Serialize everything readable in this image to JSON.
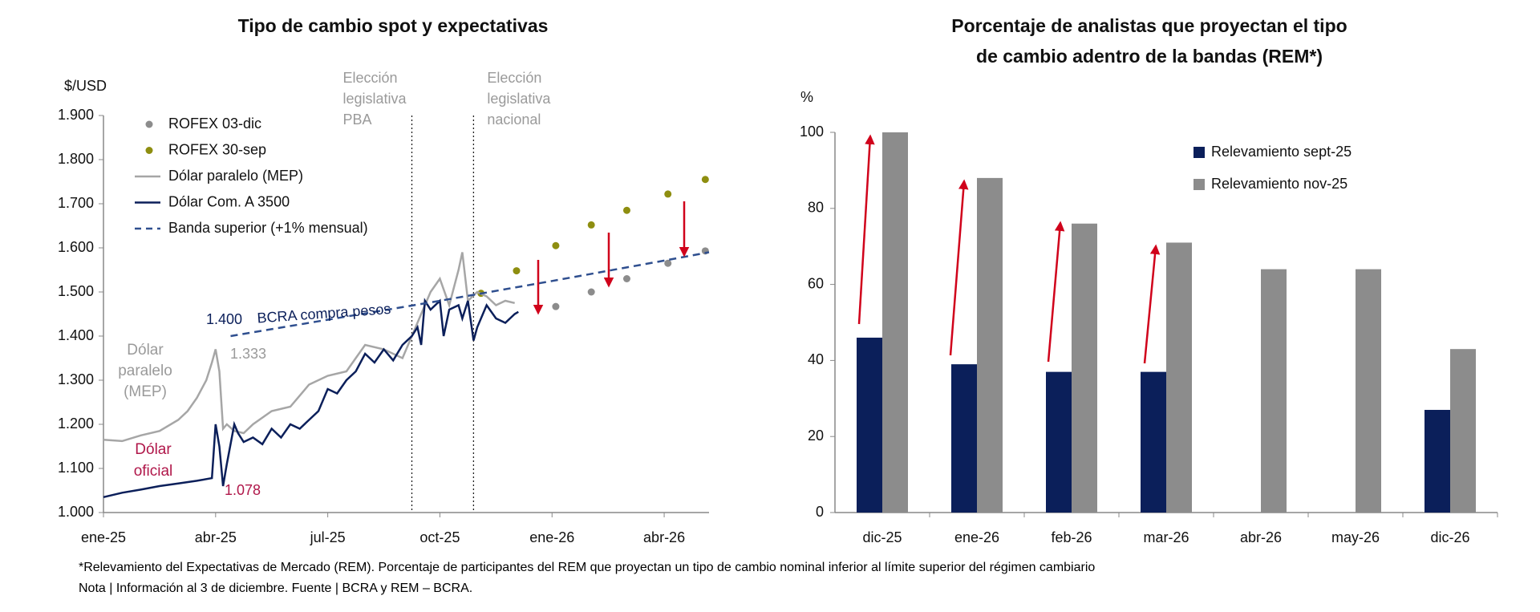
{
  "chart_data": [
    {
      "type": "line",
      "title": "Tipo de cambio spot y expectativas",
      "ylabel": "$/USD",
      "xlim": [
        0,
        16.2
      ],
      "ylim": [
        1000,
        1900
      ],
      "xticks": [
        {
          "value": 0,
          "label": "ene-25"
        },
        {
          "value": 3,
          "label": "abr-25"
        },
        {
          "value": 6,
          "label": "jul-25"
        },
        {
          "value": 9,
          "label": "oct-25"
        },
        {
          "value": 12,
          "label": "ene-26"
        },
        {
          "value": 15,
          "label": "abr-26"
        }
      ],
      "yticks": [
        {
          "value": 1000,
          "label": "1.000"
        },
        {
          "value": 1100,
          "label": "1.100"
        },
        {
          "value": 1200,
          "label": "1.200"
        },
        {
          "value": 1300,
          "label": "1.300"
        },
        {
          "value": 1400,
          "label": "1.400"
        },
        {
          "value": 1500,
          "label": "1.500"
        },
        {
          "value": 1600,
          "label": "1.600"
        },
        {
          "value": 1700,
          "label": "1.700"
        },
        {
          "value": 1800,
          "label": "1.800"
        },
        {
          "value": 1900,
          "label": "1.900"
        }
      ],
      "grid": false,
      "series": [
        {
          "name": "ROFEX 03-dic",
          "color": "#8c8c8c",
          "kind": "points",
          "x": [
            12.1,
            13.05,
            14.0,
            15.1,
            16.1
          ],
          "values": [
            1467,
            1500,
            1530,
            1565,
            1593
          ]
        },
        {
          "name": "ROFEX 30-sep",
          "color": "#8e8e10",
          "kind": "points",
          "x": [
            10.1,
            11.05,
            12.1,
            13.05,
            14.0,
            15.1,
            16.1
          ],
          "values": [
            1497,
            1548,
            1605,
            1652,
            1685,
            1722,
            1755
          ]
        },
        {
          "name": "Dólar paralelo (MEP)",
          "color": "#a6a6a6",
          "kind": "line",
          "x": [
            0,
            0.5,
            1,
            1.5,
            2,
            2.25,
            2.5,
            2.75,
            2.9,
            3.0,
            3.1,
            3.2,
            3.3,
            3.5,
            3.75,
            4,
            4.5,
            5,
            5.5,
            6,
            6.5,
            7,
            7.5,
            8,
            8.25,
            8.5,
            8.75,
            9,
            9.25,
            9.5,
            9.6,
            9.75,
            10,
            10.25,
            10.5,
            10.75,
            11
          ],
          "values": [
            1165,
            1162,
            1175,
            1185,
            1210,
            1230,
            1260,
            1300,
            1340,
            1370,
            1320,
            1190,
            1200,
            1185,
            1180,
            1200,
            1230,
            1240,
            1290,
            1310,
            1320,
            1380,
            1370,
            1350,
            1400,
            1450,
            1500,
            1530,
            1470,
            1550,
            1590,
            1480,
            1500,
            1490,
            1470,
            1480,
            1475
          ]
        },
        {
          "name": "Dólar Com. A 3500",
          "color": "#0b1f5a",
          "kind": "line",
          "x": [
            0,
            0.5,
            1,
            1.5,
            2,
            2.5,
            2.9,
            3.0,
            3.1,
            3.2,
            3.3,
            3.5,
            3.6,
            3.75,
            4,
            4.25,
            4.5,
            4.75,
            5,
            5.25,
            5.5,
            5.75,
            6,
            6.25,
            6.5,
            6.75,
            7,
            7.25,
            7.5,
            7.75,
            8,
            8.25,
            8.4,
            8.5,
            8.6,
            8.75,
            9,
            9.1,
            9.25,
            9.5,
            9.6,
            9.75,
            9.9,
            10,
            10.25,
            10.5,
            10.75,
            11,
            11.1
          ],
          "values": [
            1035,
            1045,
            1052,
            1060,
            1066,
            1072,
            1078,
            1200,
            1150,
            1060,
            1110,
            1200,
            1180,
            1160,
            1170,
            1155,
            1190,
            1170,
            1200,
            1190,
            1210,
            1230,
            1280,
            1270,
            1300,
            1320,
            1360,
            1340,
            1370,
            1345,
            1380,
            1400,
            1420,
            1380,
            1480,
            1460,
            1480,
            1400,
            1460,
            1470,
            1440,
            1480,
            1390,
            1420,
            1470,
            1440,
            1430,
            1450,
            1455
          ]
        },
        {
          "name": "Banda superior (+1% mensual)",
          "color": "#2f4f8f",
          "kind": "dashed",
          "x": [
            3.4,
            6,
            9,
            12,
            15,
            16.2
          ],
          "values": [
            1400,
            1437,
            1480,
            1525,
            1571,
            1590
          ]
        }
      ],
      "events": [
        {
          "x": 8.25,
          "lines": [
            "Elección",
            "legislativa",
            "PBA"
          ]
        },
        {
          "x": 9.9,
          "lines": [
            "Elección",
            "legislativa",
            "nacional"
          ]
        }
      ],
      "annotations": [
        "1.400",
        "BCRA compra pesos",
        "1.333",
        {
          "lines": [
            "Dólar",
            "paralelo",
            "(MEP)"
          ]
        },
        {
          "lines": [
            "Dólar",
            "oficial"
          ]
        },
        "1.078"
      ]
    },
    {
      "type": "bar",
      "title": [
        "Porcentaje de analistas que proyectan el tipo",
        "de cambio adentro de la bandas (REM*)"
      ],
      "ylabel": "%",
      "categories": [
        "dic-25",
        "ene-26",
        "feb-26",
        "mar-26",
        "abr-26",
        "may-26",
        "dic-26"
      ],
      "ylim": [
        0,
        100
      ],
      "yticks": [
        0,
        20,
        40,
        60,
        80,
        100
      ],
      "grid": false,
      "series": [
        {
          "name": "Relevamiento sept-25",
          "color": "#0b1f5a",
          "values": [
            46,
            39,
            37,
            37,
            null,
            null,
            27
          ]
        },
        {
          "name": "Relevamiento nov-25",
          "color": "#8c8c8c",
          "values": [
            100,
            88,
            76,
            71,
            64,
            64,
            43
          ]
        }
      ]
    }
  ],
  "footnotes": [
    "*Relevamiento del Expectativas de Mercado (REM). Porcentaje de participantes del REM que proyectan un tipo de cambio nominal inferior al límite superior del régimen cambiario",
    "Nota | Información al 3 de diciembre.  Fuente | BCRA y REM – BCRA."
  ]
}
